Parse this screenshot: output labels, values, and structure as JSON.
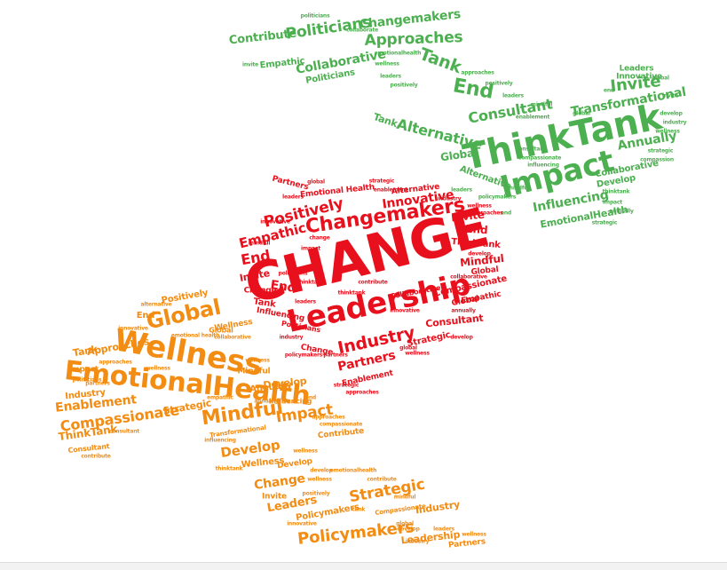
{
  "colors": {
    "green": "#4caf50",
    "red": "#e8101c",
    "orange": "#f28c12"
  },
  "green_hand": {
    "contribute": "Contribute",
    "politicians": "Politicians",
    "changemakers": "Changemakers",
    "approaches": "Approaches",
    "empathic": "Empathic",
    "collaborative": "Collaborative",
    "politicians_small": "Politicians",
    "tank": "Tank",
    "end": "End",
    "consultant": "Consultant",
    "invite": "Invite",
    "leaders": "Leaders",
    "innovative": "Innovative",
    "transformational": "Transformational",
    "tank2": "Tank",
    "alternative": "Alternative",
    "thinktank": "ThinkTank",
    "annually": "Annually",
    "global": "Global",
    "impact": "Impact",
    "influencing": "Influencing",
    "emotionalhealth": "EmotionalHealth",
    "collaborative2": "Collaborative",
    "develop": "Develop",
    "alternative2": "Alternative"
  },
  "heart": {
    "partners": "Partners",
    "emotional_health": "Emotional Health",
    "alternative": "Alternative",
    "innovative": "Innovative",
    "positively": "Positively",
    "changemakers": "Changemakers",
    "invite": "Invite",
    "empathic": "Empathic",
    "end": "End",
    "thinktank": "ThinkTank",
    "change": "CHANGE",
    "end_left": "End",
    "invite_left": "Invite",
    "mindful": "Mindful",
    "global": "Global",
    "end_small": "End",
    "change_small": "Change",
    "tank": "Tank",
    "influencing": "Influencing",
    "leadership": "Leadership",
    "consultant": "Consultant",
    "compassionate": "Compassionate",
    "empathic_right": "Empathic",
    "global_right": "Global",
    "collaborative": "Collaborative",
    "industry": "Industry",
    "strategic": "Strategic",
    "partners_bottom": "Partners",
    "enablement": "Enablement",
    "politicians": "Politicians",
    "change_bottom": "Change"
  },
  "orange_hand": {
    "positively": "Positively",
    "end": "End",
    "global": "Global",
    "wellness": "Wellness",
    "tank": "Tank",
    "approaches": "Approaches",
    "wellness_big": "Wellness",
    "impact": "Impact",
    "emotionalhealth": "EmotionalHealth",
    "enablement": "Enablement",
    "annually": "Annually",
    "industry": "Industry",
    "compassionate": "Compassionate",
    "strategic": "Strategic",
    "mindful": "Mindful",
    "develop": "Develop",
    "impact2": "Impact",
    "thinktank": "ThinkTank",
    "contribute": "Contribute",
    "consultant": "Consultant",
    "develop2": "Develop",
    "wellness2": "Wellness",
    "change": "Change",
    "invite": "Invite",
    "leaders": "Leaders",
    "policymakers": "Policymakers",
    "strategic2": "Strategic",
    "industry2": "Industry",
    "compassionate2": "Compassionate",
    "policymakers_big": "Policymakers",
    "leadership": "Leadership",
    "partners": "Partners",
    "global_small": "Global",
    "mindful_small": "Mindful",
    "develop3": "Develop",
    "influencing": "Influencing",
    "transformational": "Transformational"
  }
}
